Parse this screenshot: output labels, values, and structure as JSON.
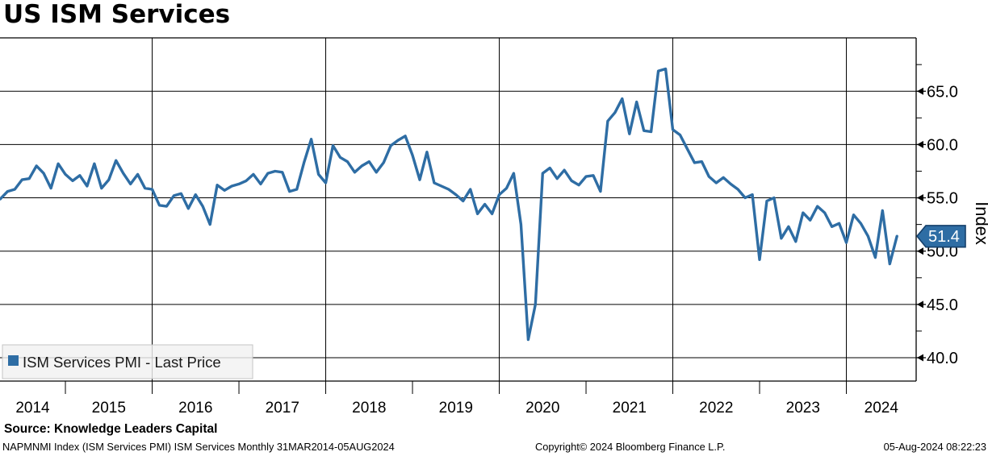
{
  "title": "US ISM Services",
  "chart_data": {
    "type": "line",
    "title": "US ISM Services",
    "ylabel": "Index",
    "ylim": [
      37.8,
      70.0
    ],
    "yticks_major": [
      40.0,
      45.0,
      50.0,
      55.0,
      60.0,
      65.0
    ],
    "yticks_minor": [
      42.5,
      47.5,
      52.5,
      57.5,
      62.5,
      67.5
    ],
    "x_year_labels": [
      "2014",
      "2015",
      "2016",
      "2017",
      "2018",
      "2019",
      "2020",
      "2021",
      "2022",
      "2023",
      "2024"
    ],
    "grid_years": [
      2016,
      2018,
      2020,
      2022,
      2024
    ],
    "legend_position": "bottom-left",
    "grid": true,
    "last_price": 51.4,
    "series": [
      {
        "name": "ISM Services PMI - Last Price",
        "frequency": "monthly",
        "start": "2014-03",
        "end": "2024-07",
        "values": [
          54.9,
          55.6,
          55.8,
          56.7,
          56.8,
          58.0,
          57.3,
          55.9,
          58.2,
          57.2,
          56.6,
          57.1,
          56.1,
          58.2,
          55.9,
          56.7,
          58.5,
          57.3,
          56.3,
          57.2,
          55.9,
          55.8,
          54.3,
          54.2,
          55.2,
          55.4,
          54.0,
          55.3,
          54.2,
          52.5,
          56.2,
          55.7,
          56.1,
          56.3,
          56.6,
          57.2,
          56.3,
          57.3,
          57.5,
          57.4,
          55.6,
          55.8,
          58.3,
          60.5,
          57.2,
          56.4,
          59.9,
          58.8,
          58.4,
          57.4,
          58.0,
          58.4,
          57.4,
          58.3,
          59.9,
          60.4,
          60.8,
          59.0,
          56.7,
          59.3,
          56.4,
          56.1,
          55.8,
          55.3,
          54.7,
          55.8,
          53.5,
          54.4,
          53.5,
          55.3,
          55.9,
          57.3,
          52.5,
          41.7,
          45.0,
          57.3,
          57.8,
          56.8,
          57.6,
          56.6,
          56.2,
          57.0,
          57.1,
          55.6,
          62.2,
          63.0,
          64.3,
          61.0,
          64.0,
          61.3,
          61.2,
          66.9,
          67.1,
          61.4,
          60.9,
          59.6,
          58.3,
          58.4,
          57.0,
          56.4,
          56.9,
          56.3,
          55.8,
          55.0,
          55.3,
          49.2,
          54.7,
          55.0,
          51.2,
          52.3,
          50.9,
          53.6,
          52.9,
          54.2,
          53.6,
          52.3,
          52.6,
          50.8,
          53.4,
          52.6,
          51.4,
          49.4,
          53.8,
          48.8,
          51.4
        ]
      }
    ]
  },
  "legend": {
    "label": "ISM Services PMI - Last Price"
  },
  "badge": {
    "value": "51.4",
    "fill": "#2e6da4",
    "border": "#15406b",
    "text_color": "#ffffff"
  },
  "footer": {
    "source": "Source: Knowledge Leaders Capital",
    "security": "NAPMNMI Index (ISM Services PMI) ISM Services  Monthly 31MAR2014-05AUG2024",
    "copyright": "Copyright© 2024 Bloomberg Finance L.P.",
    "timestamp": "05-Aug-2024 08:22:23"
  },
  "colors": {
    "line": "#2e6da4",
    "grid": "#000000",
    "axis": "#000000",
    "legend_bg": "#f2f2f2",
    "background": "#ffffff"
  }
}
